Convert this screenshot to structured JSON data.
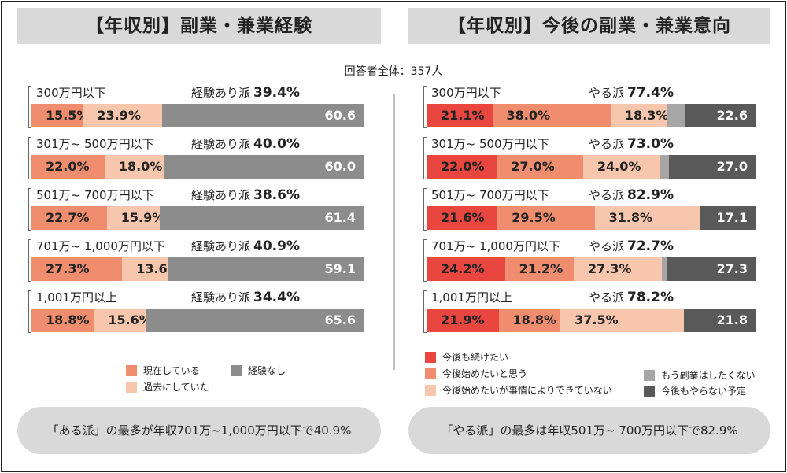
{
  "left_title": "【年収別】副業・兼業経験",
  "right_title": "【年収別】今後の副業・兼業意向",
  "total_label": "回答者全体：357人",
  "colors": {
    "current": "#ef8d6e",
    "past": "#f8c6ad",
    "none": "#8c8c8c",
    "continue": "#e8463e",
    "start": "#ef8d6e",
    "want_cannot": "#f8c6ad",
    "no_more": "#a6a6a6",
    "never": "#595959"
  },
  "left_legend": [
    "現在している",
    "経験なし",
    "過去にしていた"
  ],
  "right_legend": [
    "今後も続けたい",
    "今後始めたいと思う",
    "今後始めたいが事情によりできていない",
    "もう副業はしたくない",
    "今後もやらない予定"
  ],
  "left_callout": "「ある派」の最多が年収701万~1,000万円以下で40.9%",
  "right_callout": "「やる派」の最多は年収501万~ 700万円以下で82.9%",
  "chart_data": [
    {
      "type": "bar",
      "title": "【年収別】副業・兼業経験",
      "categories": [
        "300万円以下",
        "301万~ 500万円以下",
        "501万~ 700万円以下",
        "701万~ 1,000万円以下",
        "1,001万円以上"
      ],
      "summary_label": "経験あり派",
      "summary_values": [
        "39.4%",
        "40.0%",
        "38.6%",
        "40.9%",
        "34.4%"
      ],
      "series": [
        {
          "name": "現在している",
          "color_key": "current",
          "values": [
            15.5,
            22.0,
            22.7,
            27.3,
            18.8
          ],
          "labels": [
            "15.5%",
            "22.0%",
            "22.7%",
            "27.3%",
            "18.8%"
          ]
        },
        {
          "name": "過去にしていた",
          "color_key": "past",
          "values": [
            23.9,
            18.0,
            15.9,
            13.6,
            15.6
          ],
          "labels": [
            "23.9%",
            "18.0%",
            "15.9%",
            "13.6%",
            "15.6%"
          ]
        },
        {
          "name": "経験なし",
          "color_key": "none",
          "values": [
            60.6,
            60.0,
            61.4,
            59.1,
            65.6
          ],
          "labels": [
            "60.6",
            "60.0",
            "61.4",
            "59.1",
            "65.6"
          ]
        }
      ]
    },
    {
      "type": "bar",
      "title": "【年収別】今後の副業・兼業意向",
      "categories": [
        "300万円以下",
        "301万~ 500万円以下",
        "501万~ 700万円以下",
        "701万~ 1,000万円以下",
        "1,001万円以上"
      ],
      "summary_label": "やる派",
      "summary_values": [
        "77.4%",
        "73.0%",
        "82.9%",
        "72.7%",
        "78.2%"
      ],
      "series": [
        {
          "name": "今後も続けたい",
          "color_key": "continue",
          "values": [
            21.1,
            22.0,
            21.6,
            24.2,
            21.9
          ],
          "labels": [
            "21.1%",
            "22.0%",
            "21.6%",
            "24.2%",
            "21.9%"
          ]
        },
        {
          "name": "今後始めたいと思う",
          "color_key": "start",
          "values": [
            38.0,
            27.0,
            29.5,
            21.2,
            18.8
          ],
          "labels": [
            "38.0%",
            "27.0%",
            "29.5%",
            "21.2%",
            "18.8%"
          ]
        },
        {
          "name": "今後始めたいが事情によりできていない",
          "color_key": "want_cannot",
          "values": [
            18.3,
            24.0,
            31.8,
            27.3,
            37.5
          ],
          "labels": [
            "18.3%",
            "24.0%",
            "31.8%",
            "27.3%",
            "37.5%"
          ]
        },
        {
          "name": "もう副業はしたくない",
          "color_key": "no_more",
          "values": [
            5.6,
            3.0,
            0.0,
            1.5,
            0.0
          ],
          "labels": [
            "",
            "",
            "",
            "",
            ""
          ]
        },
        {
          "name": "今後もやらない予定",
          "color_key": "never",
          "values": [
            22.6,
            27.0,
            17.1,
            27.3,
            21.8
          ],
          "labels": [
            "22.6",
            "27.0",
            "17.1",
            "27.3",
            "21.8"
          ]
        }
      ]
    }
  ]
}
